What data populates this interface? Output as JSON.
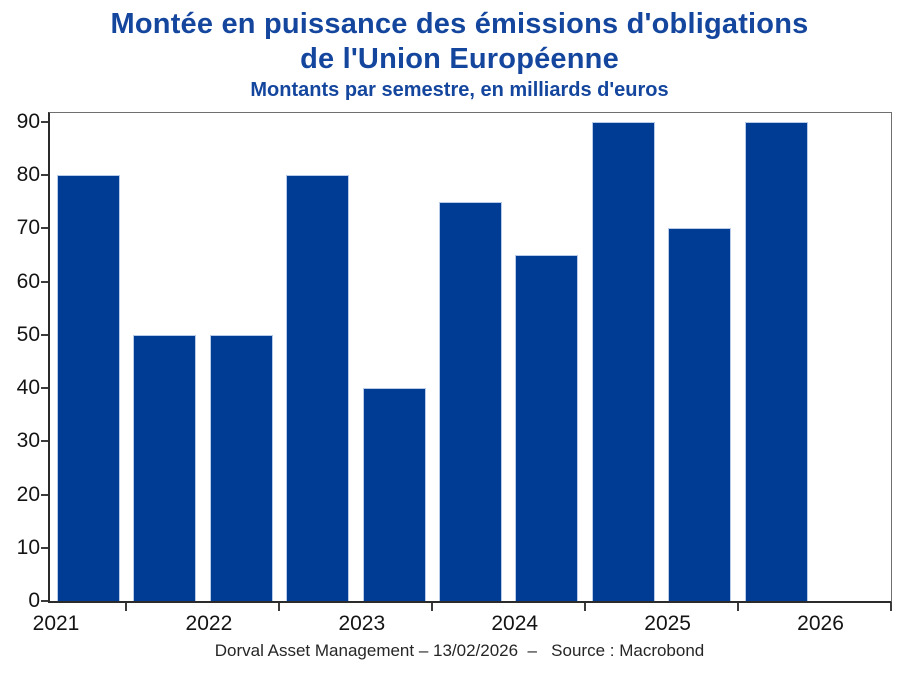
{
  "chart_data": {
    "type": "bar",
    "title": "Montée en puissance des émissions d'obligations\nde l'Union Européenne",
    "subtitle": "Montants par semestre, en milliards d'euros",
    "footer": "Dorval Asset Management – 13/02/2026  –   Source : Macrobond",
    "categories": [
      "2021 S1",
      "2021 S2",
      "2022 S1",
      "2022 S2",
      "2023 S1",
      "2023 S2",
      "2024 S1",
      "2024 S2",
      "2025 S1",
      "2025 S2"
    ],
    "values": [
      80,
      50,
      50,
      80,
      40,
      75,
      65,
      90,
      70,
      90
    ],
    "x_tick_labels": [
      "2021",
      "2022",
      "2023",
      "2024",
      "2025",
      "2026"
    ],
    "x_span_years": 5.5,
    "y_ticks": [
      0,
      10,
      20,
      30,
      40,
      50,
      60,
      70,
      80,
      90
    ],
    "ylim": [
      0,
      92
    ],
    "xlabel": "",
    "ylabel": "",
    "unit": "milliards d'euros",
    "bar_color": "#003c93",
    "bar_edge_color": "#b7cbe9",
    "title_color": "#14469e",
    "axis_color": "#3c3c3c",
    "grid": false,
    "legend": "none"
  }
}
